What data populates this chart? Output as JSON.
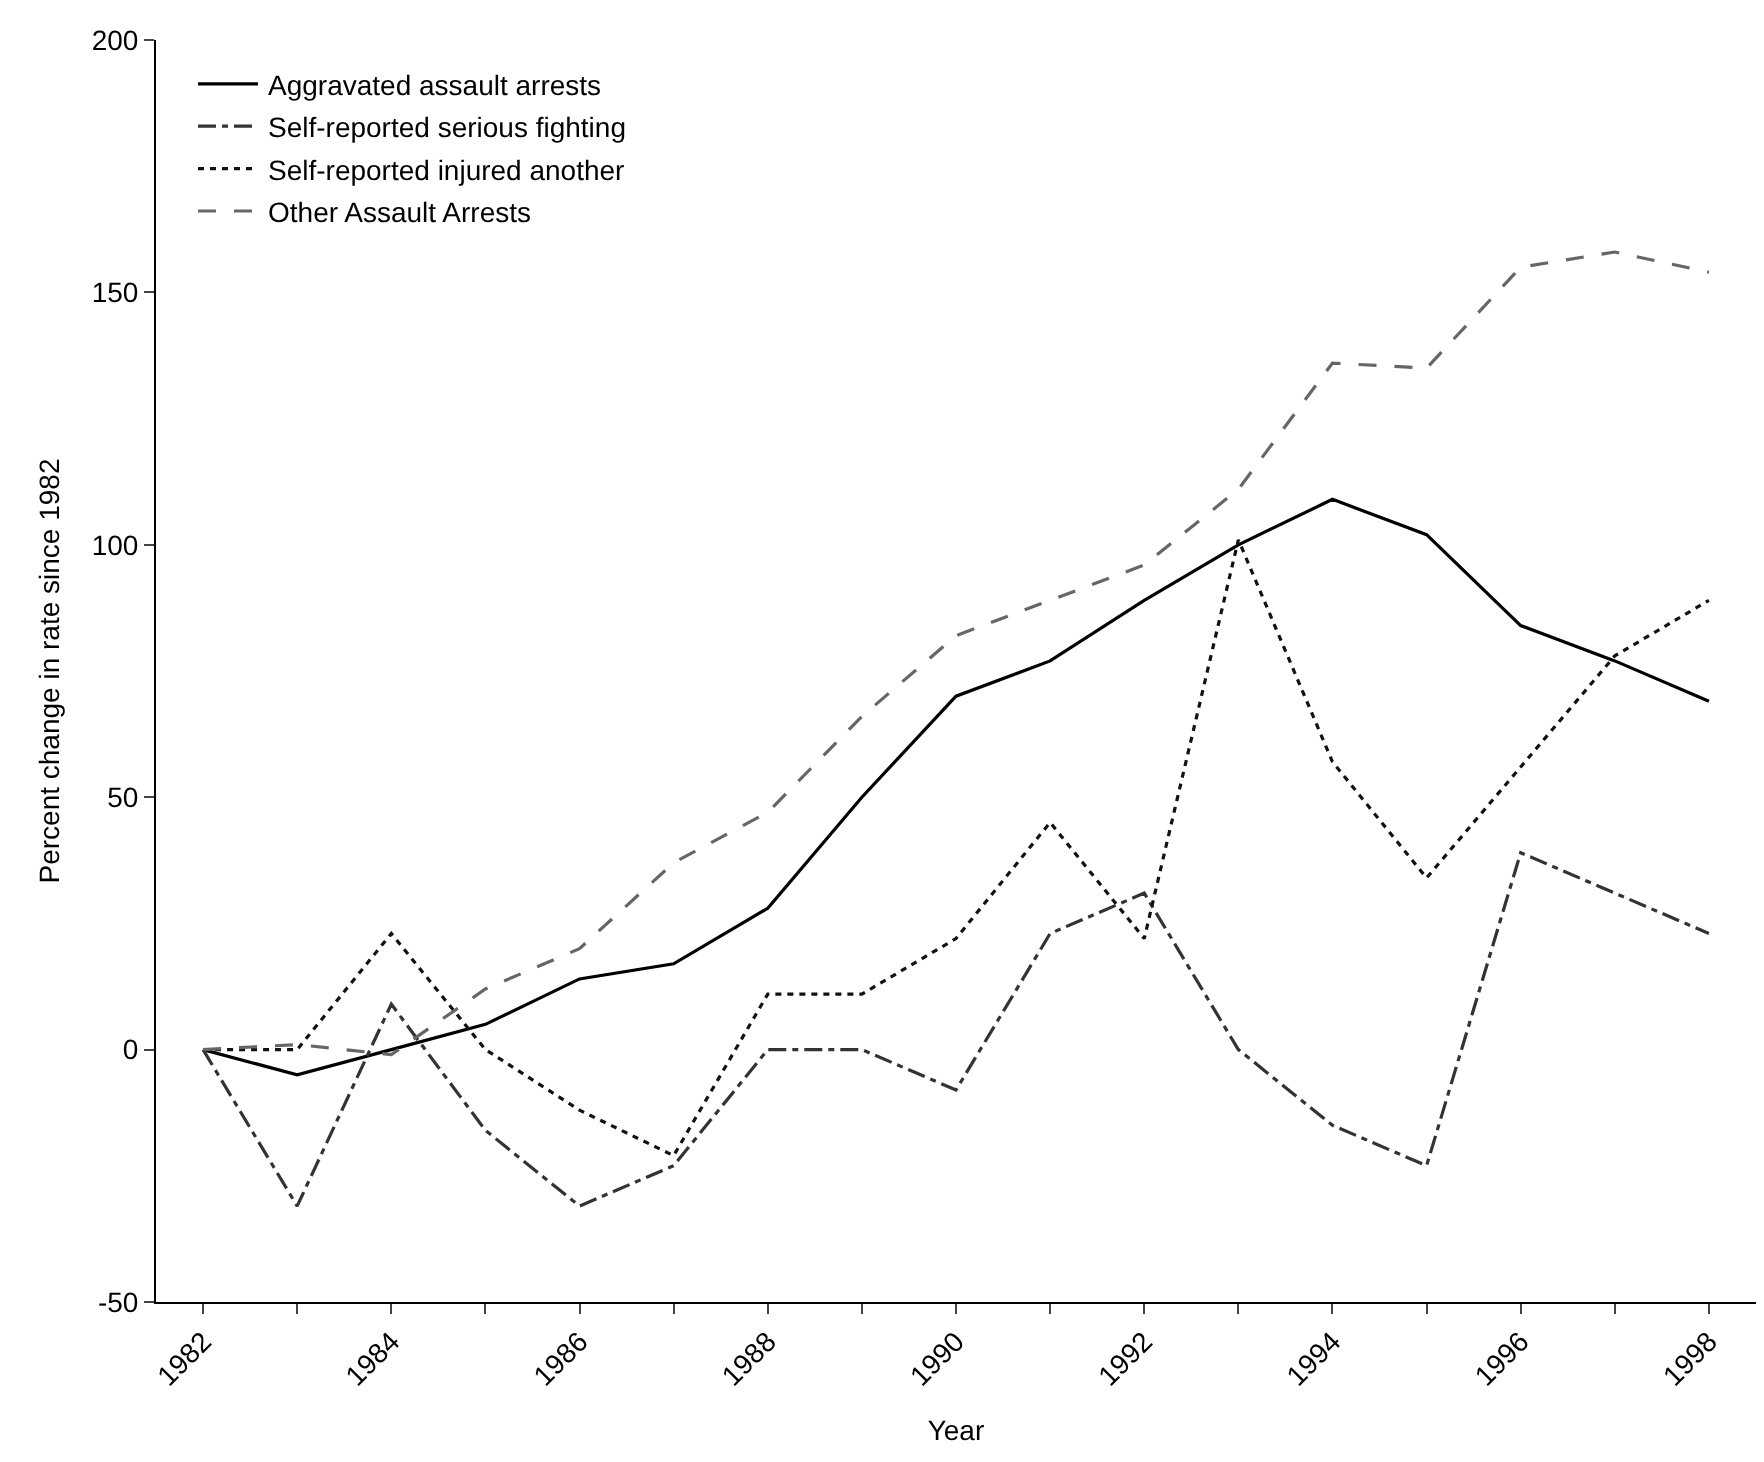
{
  "chart_data": {
    "type": "line",
    "xlabel": "Year",
    "ylabel": "Percent change in rate since 1982",
    "categories": [
      "1982",
      null,
      "1984",
      null,
      "1986",
      null,
      "1988",
      null,
      "1990",
      null,
      "1992",
      null,
      "1994",
      null,
      "1996",
      null,
      "1998"
    ],
    "ylim": [
      -50,
      200
    ],
    "yticks": [
      -50,
      0,
      50,
      100,
      150,
      200
    ],
    "legend": "top left",
    "marker": "none",
    "series": [
      {
        "name": "Aggravated assault arrests",
        "color": "#000000",
        "line_style": "solid",
        "values": [
          0,
          -5,
          0,
          5,
          14,
          17,
          28,
          50,
          70,
          77,
          89,
          100,
          109,
          102,
          84,
          77,
          69
        ]
      },
      {
        "name": "Self-reported serious fighting",
        "color": "#333333",
        "line_style": "dashdot",
        "values": [
          0,
          -31,
          9,
          -16,
          -31,
          -23,
          0,
          0,
          -8,
          23,
          31,
          0,
          -15,
          -23,
          39,
          31,
          23
        ]
      },
      {
        "name": "Self-reported injured another",
        "color": "#111111",
        "line_style": "dotted",
        "values": [
          0,
          0,
          23,
          0,
          -12,
          -21,
          11,
          11,
          22,
          45,
          22,
          101,
          57,
          34,
          56,
          78,
          89
        ]
      },
      {
        "name": "Other Assault Arrests",
        "color": "#666666",
        "line_style": "dashed",
        "values": [
          0,
          1,
          -1,
          12,
          20,
          37,
          47,
          66,
          82,
          89,
          96,
          111,
          136,
          135,
          155,
          158,
          154
        ]
      }
    ]
  }
}
